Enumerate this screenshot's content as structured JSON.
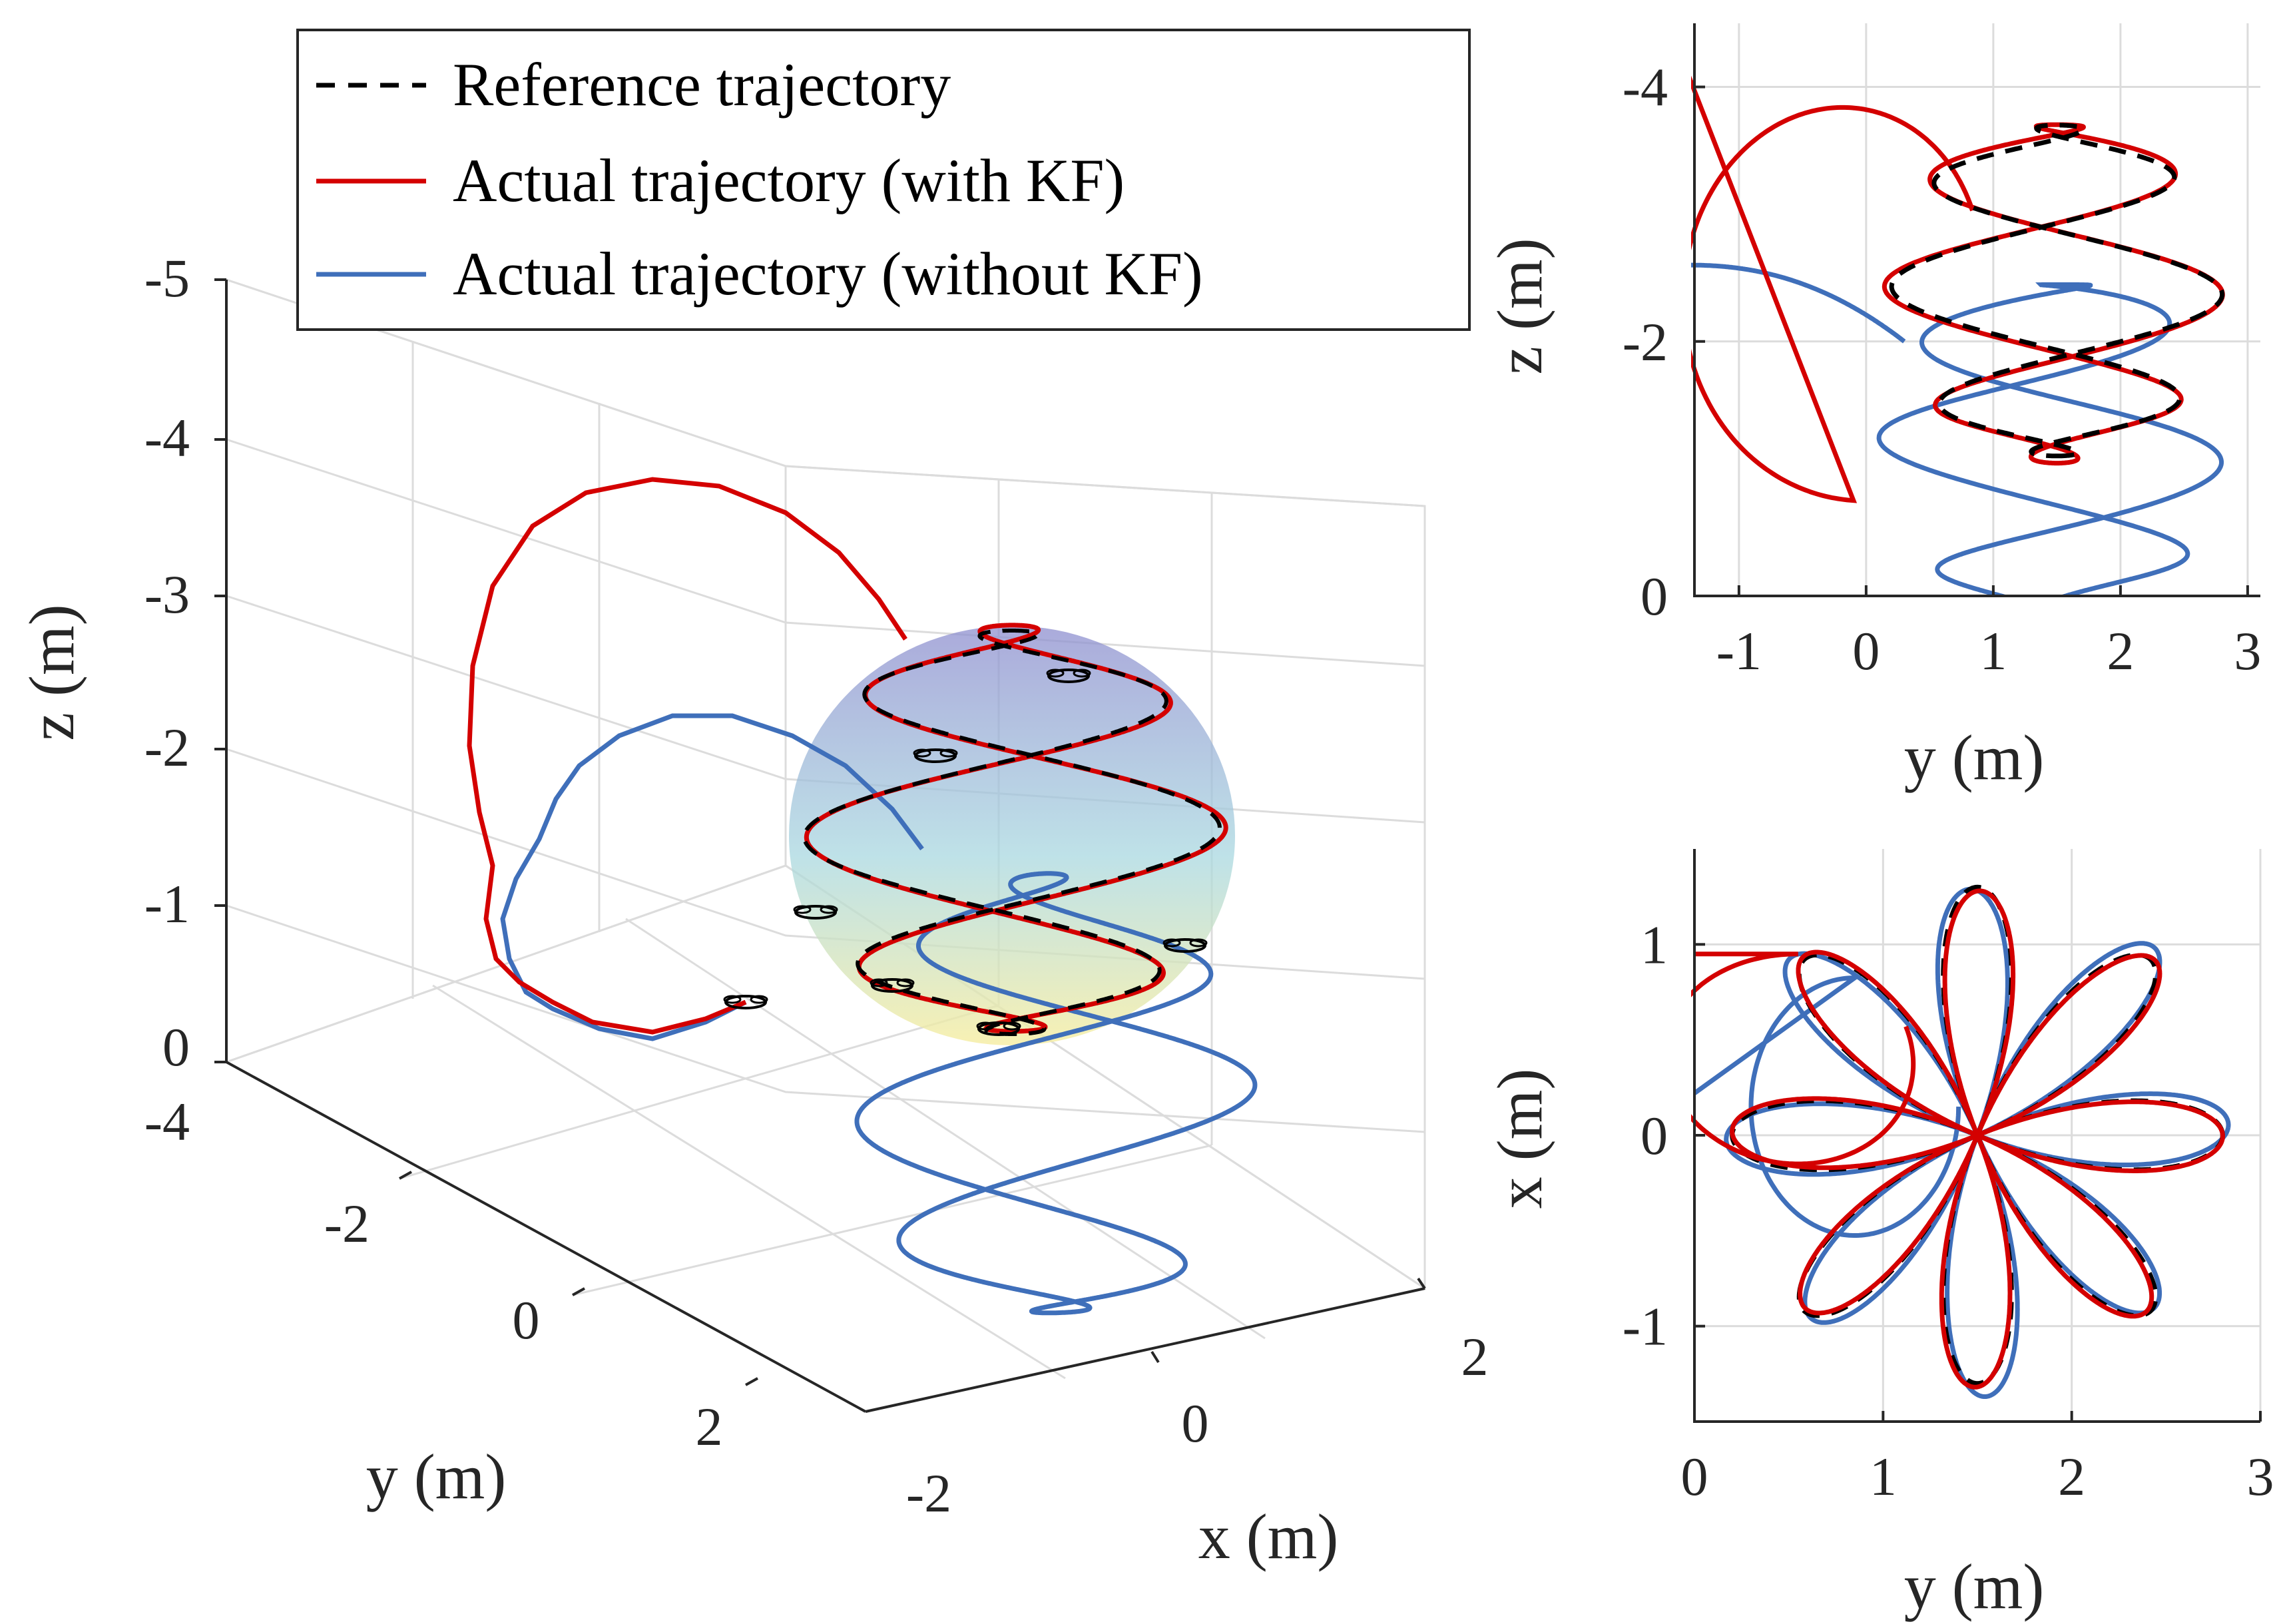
{
  "colors": {
    "reference": "#000000",
    "with_kf": "#d40000",
    "without_kf": "#3f6fba",
    "sphere_top": "#8e8ecf",
    "sphere_mid": "#a9d8e0",
    "sphere_bottom": "#f6eda0",
    "grid": "#dcdcdc",
    "axis": "#262626"
  },
  "legend": {
    "items": [
      {
        "label": "Reference trajectory",
        "style": "dashed",
        "color": "#000000"
      },
      {
        "label": "Actual trajectory (with KF)",
        "style": "solid",
        "color": "#d40000"
      },
      {
        "label": "Actual trajectory (without KF)",
        "style": "solid",
        "color": "#3f6fba"
      }
    ]
  },
  "chart_data": [
    {
      "id": "main_3d",
      "type": "line",
      "projection": "3d",
      "xlabel": "x (m)",
      "ylabel": "y (m)",
      "zlabel": "z (m)",
      "xlim": [
        -2,
        2
      ],
      "ylim": [
        -4,
        2
      ],
      "zlim": [
        0,
        -5
      ],
      "xticks": [
        "-2",
        "0",
        "2"
      ],
      "yticks": [
        "-4",
        "-2",
        "0",
        "2"
      ],
      "zticks": [
        "-5",
        "-4",
        "-3",
        "-2",
        "-1",
        "0"
      ],
      "grid": true,
      "sphere": {
        "center": [
          0,
          1.5,
          -2.4
        ],
        "radius": 1.5,
        "colormap": "top blue to bottom yellow"
      },
      "series": [
        {
          "name": "Reference trajectory",
          "style": "dashed",
          "shape": "8-petal rose wrapped on sphere, center y=1.5, z=-2.4, radius 1.5"
        },
        {
          "name": "Actual trajectory (with KF)",
          "style": "solid",
          "shape": "approach from start near (y=-2, z=0) rising to z=-3.7 then tracking the rose"
        },
        {
          "name": "Actual trajectory (without KF)",
          "style": "solid",
          "shape": "approach from start near (y=-2, z=0), rose offset about 1.3 m lower in z"
        }
      ]
    },
    {
      "id": "yz_view",
      "type": "line",
      "xlabel": "y (m)",
      "ylabel": "z (m)",
      "xlim": [
        -1.35,
        3.1
      ],
      "ylim": [
        0,
        -4.5
      ],
      "xticks": [
        "-1",
        "0",
        "1",
        "2",
        "3"
      ],
      "yticks": [
        "-4",
        "-2",
        "0"
      ],
      "grid": true,
      "series": [
        {
          "name": "Reference trajectory",
          "center": [
            1.5,
            -2.4
          ],
          "radius": 1.3
        },
        {
          "name": "Actual trajectory (with KF)",
          "center": [
            1.5,
            -2.4
          ],
          "radius": 1.33
        },
        {
          "name": "Actual trajectory (without KF)",
          "center": [
            1.5,
            -1.15
          ],
          "radius": 1.35
        }
      ]
    },
    {
      "id": "yx_view",
      "type": "line",
      "xlabel": "y (m)",
      "ylabel": "x (m)",
      "xlim": [
        0,
        3
      ],
      "ylim": [
        -1.5,
        1.5
      ],
      "xticks": [
        "0",
        "1",
        "2",
        "3"
      ],
      "yticks": [
        "1",
        "0",
        "-1"
      ],
      "grid": true,
      "series": [
        {
          "name": "Reference trajectory",
          "shape": "8-petal rose",
          "center": [
            1.5,
            0
          ],
          "amplitude": 1.3
        },
        {
          "name": "Actual trajectory (with KF)",
          "shape": "8-petal rose",
          "center": [
            1.5,
            0
          ],
          "amplitude": 1.3
        },
        {
          "name": "Actual trajectory (without KF)",
          "shape": "8-petal rose",
          "center": [
            1.5,
            0
          ],
          "amplitude": 1.33
        }
      ]
    }
  ]
}
